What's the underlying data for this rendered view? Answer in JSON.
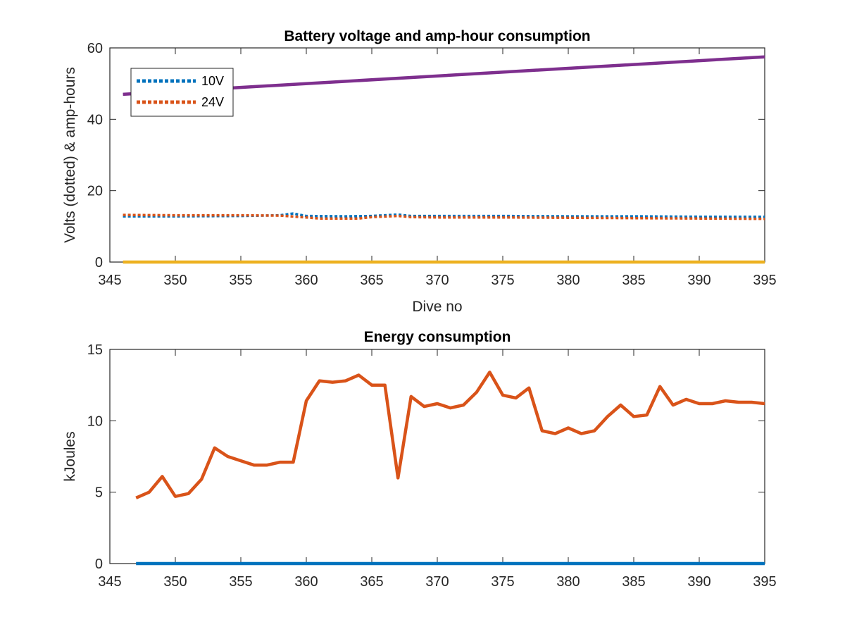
{
  "chart_data": [
    {
      "type": "line",
      "title": "Battery voltage and amp-hour consumption",
      "xlabel": "Dive no",
      "ylabel": "Volts (dotted) & amp-hours",
      "xlim": [
        345,
        395
      ],
      "ylim": [
        0,
        60
      ],
      "xticks": [
        "345",
        "350",
        "355",
        "360",
        "365",
        "370",
        "375",
        "380",
        "385",
        "390",
        "395"
      ],
      "yticks": [
        "0",
        "20",
        "40",
        "60"
      ],
      "grid": false,
      "legend": {
        "placement": "top-left",
        "entries": [
          "10V",
          "24V"
        ]
      },
      "series": [
        {
          "name": "10V",
          "style": "dotted",
          "color": "#0072BD",
          "x": [
            346,
            350,
            355,
            358,
            359,
            360,
            363,
            365,
            367,
            368,
            370,
            375,
            380,
            385,
            390,
            395
          ],
          "y": [
            12.8,
            12.8,
            12.9,
            13.1,
            13.6,
            12.9,
            12.8,
            12.9,
            13.3,
            12.9,
            12.9,
            12.9,
            12.8,
            12.8,
            12.7,
            12.7
          ]
        },
        {
          "name": "24V",
          "style": "dotted",
          "color": "#D95319",
          "x": [
            346,
            350,
            355,
            358,
            360,
            361,
            364,
            365,
            367,
            368,
            370,
            375,
            380,
            385,
            390,
            395
          ],
          "y": [
            13.2,
            13.1,
            13.1,
            13.0,
            12.5,
            12.2,
            12.2,
            12.6,
            12.9,
            12.6,
            12.5,
            12.5,
            12.4,
            12.3,
            12.2,
            12.1
          ]
        },
        {
          "style": "solid",
          "color": "#7E2F8E",
          "x": [
            346,
            395
          ],
          "y": [
            47,
            57.5
          ]
        },
        {
          "style": "solid",
          "color": "#EDB120",
          "x": [
            346,
            395
          ],
          "y": [
            0,
            0
          ]
        }
      ]
    },
    {
      "type": "line",
      "title": "Energy consumption",
      "xlabel": "",
      "ylabel": "kJoules",
      "xlim": [
        345,
        395
      ],
      "ylim": [
        0,
        15
      ],
      "xticks": [
        "345",
        "350",
        "355",
        "360",
        "365",
        "370",
        "375",
        "380",
        "385",
        "390",
        "395"
      ],
      "yticks": [
        "0",
        "5",
        "10",
        "15"
      ],
      "grid": false,
      "series": [
        {
          "style": "solid",
          "color": "#D95319",
          "x": [
            347,
            348,
            349,
            350,
            351,
            352,
            353,
            354,
            355,
            356,
            357,
            358,
            359,
            360,
            361,
            362,
            363,
            364,
            365,
            366,
            367,
            368,
            369,
            370,
            371,
            372,
            373,
            374,
            375,
            376,
            377,
            378,
            379,
            380,
            381,
            382,
            383,
            384,
            385,
            386,
            387,
            388,
            389,
            390,
            391,
            392,
            393,
            394,
            395
          ],
          "y": [
            4.6,
            5.0,
            6.1,
            4.7,
            4.9,
            5.9,
            8.1,
            7.5,
            7.2,
            6.9,
            6.9,
            7.1,
            7.1,
            11.4,
            12.8,
            12.7,
            12.8,
            13.2,
            12.5,
            12.5,
            6.0,
            11.7,
            11.0,
            11.2,
            10.9,
            11.1,
            12.0,
            13.4,
            11.8,
            11.6,
            12.3,
            9.3,
            9.1,
            9.5,
            9.1,
            9.3,
            10.3,
            11.1,
            10.3,
            10.4,
            12.4,
            11.1,
            11.5,
            11.2,
            11.2,
            11.4,
            11.3,
            11.3,
            11.2
          ]
        },
        {
          "style": "solid",
          "color": "#0072BD",
          "x": [
            347,
            395
          ],
          "y": [
            0,
            0
          ]
        }
      ]
    }
  ]
}
